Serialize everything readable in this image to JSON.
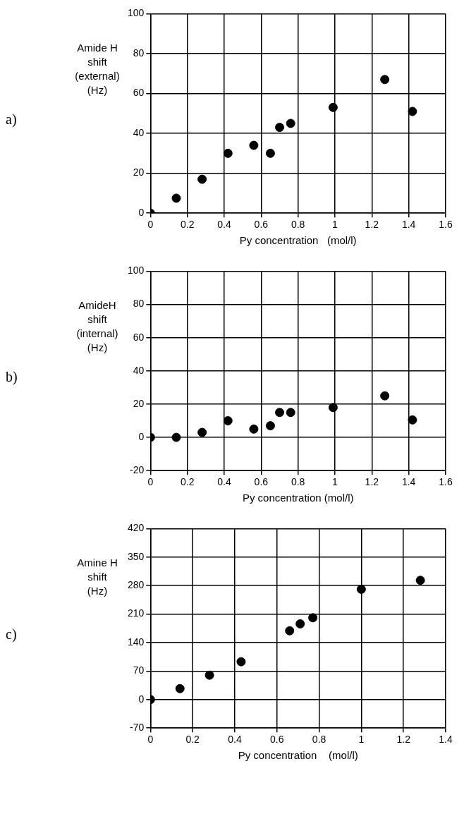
{
  "chart_data": [
    {
      "type": "scatter",
      "ylabel": "Amide H\nshift\n(external)\n(Hz)",
      "xlabel": "Py concentration   (mol/l)",
      "annotations": [
        "a)"
      ],
      "marker": "circle",
      "grid": true,
      "xlim": [
        0,
        1.6
      ],
      "xticks": [
        0,
        0.2,
        0.4,
        0.6,
        0.8,
        1,
        1.2,
        1.4,
        1.6
      ],
      "ylim": [
        0,
        100
      ],
      "yticks": [
        0,
        20,
        40,
        60,
        80,
        100
      ],
      "series": [
        {
          "color": "#000000",
          "x": [
            0,
            0.14,
            0.28,
            0.42,
            0.56,
            0.65,
            0.7,
            0.76,
            0.99,
            1.27,
            1.42
          ],
          "values": [
            0,
            7.5,
            17,
            30,
            34,
            30,
            43,
            45,
            53,
            67,
            51
          ]
        }
      ]
    },
    {
      "type": "scatter",
      "ylabel": "AmideH\nshift\n(internal)\n(Hz)",
      "xlabel": "Py concentration (mol/l)",
      "annotations": [
        "b)"
      ],
      "marker": "circle",
      "grid": true,
      "xlim": [
        0,
        1.6
      ],
      "xticks": [
        0,
        0.2,
        0.4,
        0.6,
        0.8,
        1,
        1.2,
        1.4,
        1.6
      ],
      "ylim": [
        -20,
        100
      ],
      "yticks": [
        -20,
        0,
        20,
        40,
        60,
        80,
        100
      ],
      "series": [
        {
          "color": "#000000",
          "x": [
            0,
            0.14,
            0.28,
            0.42,
            0.56,
            0.65,
            0.7,
            0.76,
            0.99,
            1.27,
            1.42
          ],
          "values": [
            0,
            0,
            3,
            10,
            5,
            7,
            15,
            15,
            18,
            25,
            10.5
          ]
        }
      ]
    },
    {
      "type": "scatter",
      "ylabel": "Amine H\nshift\n(Hz)",
      "xlabel": "Py concentration    (mol/l)",
      "annotations": [
        "c)"
      ],
      "marker": "circle",
      "grid": true,
      "xlim": [
        0,
        1.4
      ],
      "xticks": [
        0,
        0.2,
        0.4,
        0.6,
        0.8,
        1,
        1.2,
        1.4
      ],
      "ylim": [
        -70,
        420
      ],
      "yticks": [
        -70,
        0,
        70,
        140,
        210,
        280,
        350,
        420
      ],
      "series": [
        {
          "color": "#000000",
          "x": [
            0,
            0.14,
            0.28,
            0.43,
            0.66,
            0.71,
            0.77,
            1,
            1.28
          ],
          "values": [
            0,
            27,
            60,
            93,
            169,
            186,
            201,
            271,
            293
          ]
        }
      ]
    }
  ]
}
